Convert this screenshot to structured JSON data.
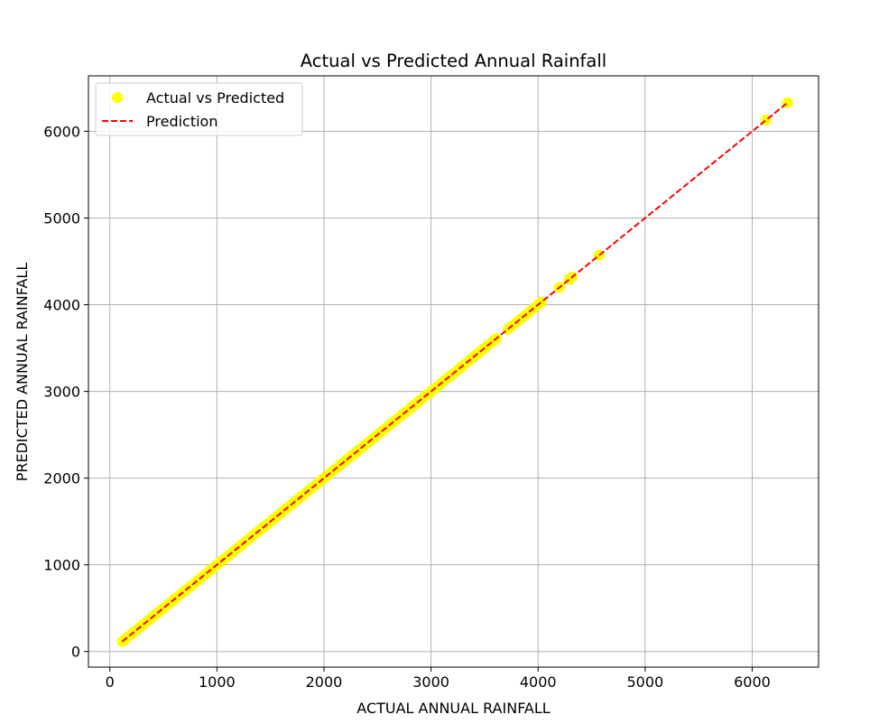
{
  "chart_data": {
    "type": "scatter",
    "title": "Actual vs Predicted Annual Rainfall",
    "xlabel": "ACTUAL ANNUAL RAINFALL",
    "ylabel": "PREDICTED ANNUAL RAINFALL",
    "xlim": [
      -200,
      6620
    ],
    "ylim": [
      -180,
      6640
    ],
    "xticks": [
      0,
      1000,
      2000,
      3000,
      4000,
      5000,
      6000
    ],
    "yticks": [
      0,
      1000,
      2000,
      3000,
      4000,
      5000,
      6000
    ],
    "grid": true,
    "legend_position": "top-left",
    "series": [
      {
        "name": "Actual vs Predicted",
        "kind": "scatter",
        "color": "#ffff00",
        "x": [
          115,
          130,
          150,
          175,
          200,
          225,
          250,
          280,
          310,
          340,
          370,
          400,
          430,
          460,
          490,
          520,
          550,
          580,
          610,
          640,
          670,
          700,
          730,
          760,
          790,
          820,
          850,
          880,
          910,
          940,
          970,
          1000,
          1030,
          1060,
          1090,
          1120,
          1150,
          1180,
          1210,
          1240,
          1270,
          1300,
          1330,
          1360,
          1390,
          1420,
          1450,
          1480,
          1510,
          1540,
          1570,
          1600,
          1630,
          1660,
          1690,
          1720,
          1750,
          1780,
          1810,
          1840,
          1870,
          1900,
          1930,
          1960,
          1990,
          2020,
          2050,
          2080,
          2110,
          2140,
          2170,
          2200,
          2230,
          2260,
          2290,
          2320,
          2350,
          2380,
          2410,
          2440,
          2470,
          2500,
          2530,
          2560,
          2590,
          2620,
          2650,
          2680,
          2710,
          2740,
          2770,
          2800,
          2830,
          2860,
          2890,
          2920,
          2950,
          2980,
          3010,
          3040,
          3070,
          3100,
          3130,
          3160,
          3190,
          3220,
          3250,
          3280,
          3310,
          3340,
          3370,
          3400,
          3430,
          3460,
          3490,
          3520,
          3550,
          3580,
          3610,
          3720,
          3760,
          3800,
          3840,
          3880,
          3920,
          3960,
          4000,
          4030,
          4200,
          4290,
          4320,
          4570,
          6130,
          6330
        ],
        "y": [
          115,
          130,
          150,
          175,
          200,
          225,
          250,
          280,
          310,
          340,
          370,
          400,
          430,
          460,
          490,
          520,
          550,
          580,
          610,
          640,
          670,
          700,
          730,
          760,
          790,
          820,
          850,
          880,
          910,
          940,
          970,
          1000,
          1030,
          1060,
          1090,
          1120,
          1150,
          1180,
          1210,
          1240,
          1270,
          1300,
          1330,
          1360,
          1390,
          1420,
          1450,
          1480,
          1510,
          1540,
          1570,
          1600,
          1630,
          1660,
          1690,
          1720,
          1750,
          1780,
          1810,
          1840,
          1870,
          1900,
          1930,
          1960,
          1990,
          2020,
          2050,
          2080,
          2110,
          2140,
          2170,
          2200,
          2230,
          2260,
          2290,
          2320,
          2350,
          2380,
          2410,
          2440,
          2470,
          2500,
          2530,
          2560,
          2590,
          2620,
          2650,
          2680,
          2710,
          2740,
          2770,
          2800,
          2830,
          2860,
          2890,
          2920,
          2950,
          2980,
          3010,
          3040,
          3070,
          3100,
          3130,
          3160,
          3190,
          3220,
          3250,
          3280,
          3310,
          3340,
          3370,
          3400,
          3430,
          3460,
          3490,
          3520,
          3550,
          3580,
          3610,
          3720,
          3760,
          3800,
          3840,
          3880,
          3920,
          3960,
          4000,
          4030,
          4200,
          4290,
          4320,
          4570,
          6130,
          6330
        ]
      },
      {
        "name": "Prediction",
        "kind": "line",
        "style": "dashed",
        "color": "#ff0000",
        "x": [
          115,
          6330
        ],
        "y": [
          115,
          6330
        ]
      }
    ]
  }
}
